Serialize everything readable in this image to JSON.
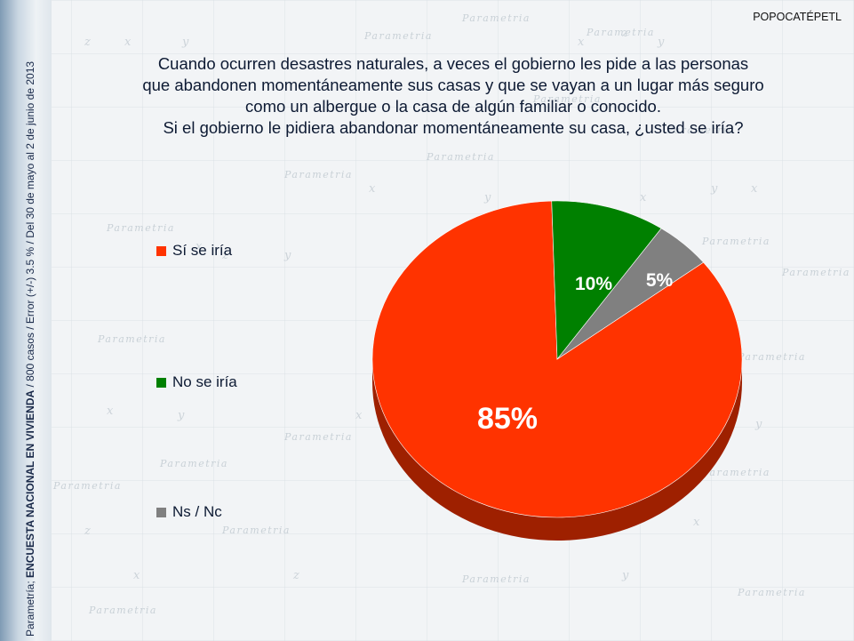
{
  "corner_label": "POPOCATÉPETL",
  "side_note": {
    "prefix": "Parametría; ",
    "bold": "ENCUESTA NACIONAL EN VIVIENDA",
    "suffix": " / 800 casos / Error (+/-) 3.5 % / Del 30 de mayo al 2  de junio de 2013"
  },
  "watermark_text": "Parametria",
  "chart_data": {
    "type": "pie",
    "title_lines": [
      "Cuando ocurren desastres naturales, a veces el gobierno les pide a las personas",
      "que abandonen momentáneamente sus casas y que se vayan a un lugar más seguro",
      "como un albergue o la casa de algún familiar o conocido.",
      "Si el gobierno le pidiera abandonar momentáneamente su casa, ¿usted se iría?"
    ],
    "legend_position": "left",
    "slices": [
      {
        "label": "Sí se iría",
        "value": 85,
        "display": "85%",
        "color": "#ff3300"
      },
      {
        "label": "No se iría",
        "value": 10,
        "display": "10%",
        "color": "#008000"
      },
      {
        "label": "Ns / Nc",
        "value": 5,
        "display": "5%",
        "color": "#808080"
      }
    ]
  }
}
